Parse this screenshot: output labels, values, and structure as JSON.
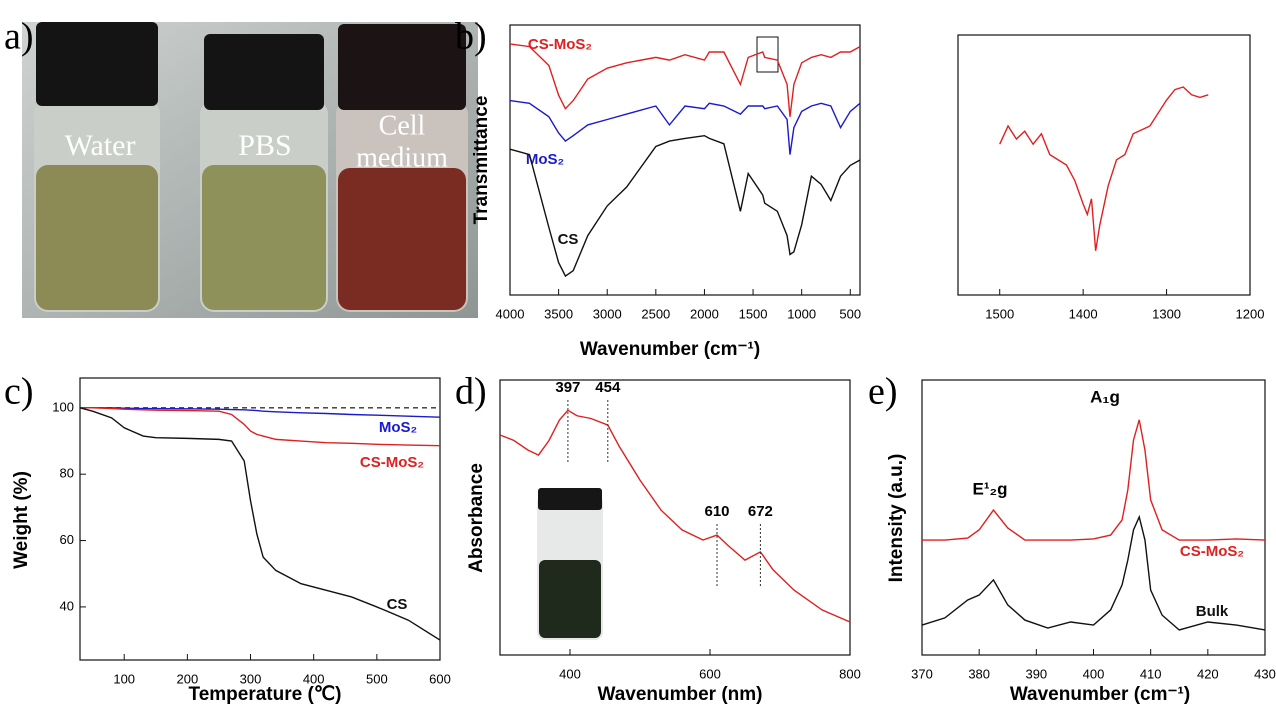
{
  "photo": {
    "label": "a)",
    "captions": [
      "Water",
      "PBS",
      [
        "Cell",
        "medium"
      ]
    ]
  },
  "chart_data": [
    {
      "type": "line",
      "label": "b)",
      "xlabel": "Wavenumber (cm⁻¹)",
      "ylabel": "Transmittance",
      "xlim": [
        4000,
        400
      ],
      "ylim": [
        0,
        100
      ],
      "xticks": [
        4000,
        3500,
        3000,
        2500,
        2000,
        1500,
        1000,
        500
      ],
      "x": [
        4000,
        3800,
        3600,
        3500,
        3430,
        3350,
        3200,
        3000,
        2800,
        2500,
        2360,
        2200,
        2000,
        1950,
        1800,
        1630,
        1550,
        1400,
        1380,
        1250,
        1150,
        1120,
        1080,
        1000,
        900,
        800,
        700,
        600,
        500,
        400
      ],
      "series": [
        {
          "name": "CS-MoS₂",
          "color": "#e02020",
          "values": [
            93,
            92,
            85,
            74,
            69,
            72,
            80,
            84,
            86,
            88,
            87,
            89,
            87,
            90,
            90,
            78,
            88,
            90,
            88,
            87,
            78,
            66,
            78,
            86,
            88,
            89,
            88,
            90,
            90,
            92
          ]
        },
        {
          "name": "MoS₂",
          "color": "#1a1ad0",
          "values": [
            72,
            71,
            66,
            60,
            57,
            59,
            63,
            65,
            67,
            70,
            63,
            70,
            69,
            71,
            70,
            67,
            70,
            70,
            69,
            70,
            65,
            52,
            62,
            68,
            70,
            71,
            70,
            62,
            68,
            71
          ]
        },
        {
          "name": "CS",
          "color": "#111111",
          "values": [
            54,
            52,
            25,
            12,
            7,
            9,
            22,
            33,
            40,
            55,
            57,
            58,
            59,
            58,
            56,
            31,
            45,
            37,
            34,
            31,
            22,
            15,
            16,
            26,
            44,
            41,
            35,
            44,
            48,
            50
          ]
        }
      ]
    },
    {
      "type": "line",
      "xlim": [
        1550,
        1200
      ],
      "ylim": [
        0,
        100
      ],
      "xticks": [
        1500,
        1400,
        1300,
        1200
      ],
      "x": [
        1500,
        1490,
        1480,
        1470,
        1460,
        1450,
        1440,
        1420,
        1410,
        1400,
        1395,
        1390,
        1385,
        1380,
        1370,
        1360,
        1350,
        1340,
        1320,
        1300,
        1290,
        1280,
        1270,
        1260,
        1250
      ],
      "series": [
        {
          "color": "#e02020",
          "values": [
            58,
            65,
            60,
            63,
            58,
            62,
            54,
            50,
            44,
            35,
            31,
            37,
            17,
            27,
            42,
            52,
            54,
            62,
            65,
            75,
            79,
            80,
            77,
            76,
            77
          ]
        }
      ]
    },
    {
      "type": "line",
      "label": "c)",
      "xlabel": "Temperature (℃)",
      "ylabel": "Weight (%)",
      "xlim": [
        30,
        600
      ],
      "ylim": [
        24,
        109
      ],
      "xticks": [
        100,
        200,
        300,
        400,
        500,
        600
      ],
      "yticks": [
        40,
        60,
        80,
        100
      ],
      "x": [
        30,
        50,
        80,
        100,
        130,
        150,
        200,
        250,
        270,
        290,
        300,
        310,
        320,
        340,
        380,
        420,
        460,
        500,
        550,
        600
      ],
      "series": [
        {
          "color": "#333333",
          "dash": true,
          "values": [
            100,
            100,
            100,
            100,
            100,
            100,
            100,
            100,
            100,
            100,
            100,
            100,
            100,
            100,
            100,
            100,
            100,
            100,
            100,
            100
          ]
        },
        {
          "name": "MoS₂",
          "color": "#1a1ad0",
          "values": [
            100,
            100,
            100,
            99.9,
            99.8,
            99.8,
            99.7,
            99.6,
            99.5,
            99.4,
            99.3,
            99.2,
            99,
            98.8,
            98.5,
            98.3,
            98,
            97.8,
            97.5,
            97.2
          ]
        },
        {
          "name": "CS-MoS₂",
          "color": "#e02020",
          "values": [
            100,
            100,
            99.8,
            99.6,
            99.4,
            99.3,
            99.2,
            99,
            98,
            95,
            93,
            92,
            91.5,
            90.5,
            90,
            89.5,
            89.3,
            89,
            88.8,
            88.6
          ]
        },
        {
          "name": "CS",
          "color": "#111111",
          "values": [
            100,
            99,
            97,
            94,
            91.5,
            91,
            90.8,
            90.5,
            90,
            84,
            72,
            62,
            55,
            51,
            47,
            45,
            43,
            40,
            36,
            30
          ]
        }
      ]
    },
    {
      "type": "line",
      "label": "d)",
      "xlabel": "Wavenumber (nm)",
      "ylabel": "Absorbance",
      "xlim": [
        300,
        800
      ],
      "ylim": [
        0,
        100
      ],
      "xticks": [
        400,
        600,
        800
      ],
      "peaks": [
        397,
        454,
        610,
        672
      ],
      "x": [
        300,
        320,
        340,
        355,
        370,
        385,
        397,
        410,
        430,
        454,
        470,
        500,
        530,
        560,
        590,
        610,
        625,
        650,
        672,
        690,
        720,
        760,
        800
      ],
      "series": [
        {
          "color": "#e02020",
          "values": [
            80,
            78,
            74.5,
            72.7,
            78,
            85.5,
            89,
            87,
            86,
            83.6,
            76,
            63.6,
            52.7,
            45.5,
            41.8,
            43.6,
            40,
            34.5,
            37.5,
            31,
            23.6,
            16.4,
            12
          ]
        }
      ]
    },
    {
      "type": "line",
      "label": "e)",
      "xlabel": "Wavenumber (cm⁻¹)",
      "ylabel": "Intensity (a.u.)",
      "xlim": [
        370,
        430
      ],
      "ylim": [
        0,
        100
      ],
      "xticks": [
        370,
        380,
        390,
        400,
        410,
        420,
        430
      ],
      "annotations": [
        "E¹₂g",
        "A₁g"
      ],
      "x": [
        370,
        374,
        378,
        380,
        382.5,
        385,
        388,
        392,
        396,
        400,
        403,
        405,
        406,
        407,
        408,
        409,
        410,
        412,
        415,
        420,
        425,
        430
      ],
      "series": [
        {
          "name": "CS-MoS₂",
          "color": "#e02020",
          "values": [
            41.8,
            41.8,
            42.5,
            45.5,
            52.7,
            46.2,
            41.8,
            41.8,
            41.8,
            42.2,
            43.6,
            49.1,
            60,
            78.2,
            85.5,
            74.5,
            56.4,
            45.5,
            41.8,
            41.8,
            42.2,
            41.8
          ]
        },
        {
          "name": "Bulk",
          "color": "#111111",
          "values": [
            10.9,
            13.5,
            20,
            21.8,
            27.3,
            18.2,
            12.7,
            9.8,
            12,
            10.9,
            16.4,
            25.5,
            34.5,
            45.5,
            50.2,
            41.8,
            23.6,
            14.5,
            9.1,
            12,
            10.9,
            9.1
          ]
        }
      ]
    }
  ]
}
